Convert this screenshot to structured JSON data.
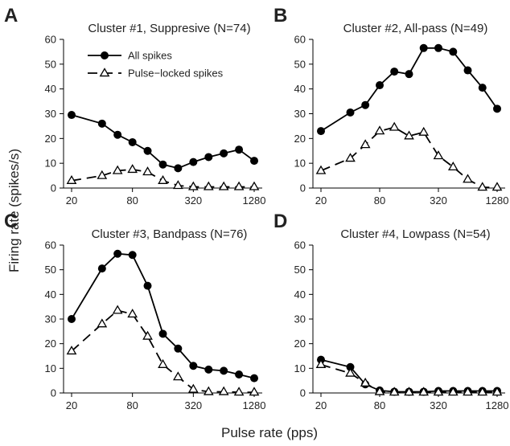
{
  "figure": {
    "xlabel": "Pulse rate (pps)",
    "ylabel": "Firing rate (spikes/s)"
  },
  "chart_data": [
    {
      "type": "line",
      "panel_label": "A",
      "title": "Cluster #1, Suppresive (N=74)",
      "xscale": "log2",
      "xlim": [
        20,
        1280
      ],
      "ylim": [
        0,
        60
      ],
      "xticks": [
        20,
        80,
        320,
        1280
      ],
      "xtick_labels": [
        "20",
        "80",
        "320",
        "1280"
      ],
      "yticks": [
        0,
        10,
        20,
        30,
        40,
        50,
        60
      ],
      "legend": "top-left",
      "x": [
        20,
        40,
        57,
        80,
        113,
        160,
        226,
        320,
        453,
        640,
        905,
        1280
      ],
      "series": [
        {
          "name": "All spikes",
          "marker": "circle",
          "line": "solid",
          "values": [
            29.5,
            26,
            21.5,
            18.5,
            15,
            9.5,
            8,
            10.5,
            12.5,
            14,
            15.5,
            11
          ]
        },
        {
          "name": "Pulse−locked spikes",
          "marker": "triangle",
          "line": "dashed",
          "values": [
            3,
            5,
            7,
            7.5,
            6.5,
            3,
            1,
            0.5,
            0.5,
            0.5,
            0.5,
            0.5
          ]
        }
      ]
    },
    {
      "type": "line",
      "panel_label": "B",
      "title": "Cluster #2, All-pass (N=49)",
      "xscale": "log2",
      "xlim": [
        20,
        1280
      ],
      "ylim": [
        0,
        60
      ],
      "xticks": [
        20,
        80,
        320,
        1280
      ],
      "xtick_labels": [
        "20",
        "80",
        "320",
        "1280"
      ],
      "yticks": [
        0,
        10,
        20,
        30,
        40,
        50,
        60
      ],
      "x": [
        20,
        40,
        57,
        80,
        113,
        160,
        226,
        320,
        453,
        640,
        905,
        1280
      ],
      "series": [
        {
          "marker": "circle",
          "line": "solid",
          "values": [
            23,
            30.5,
            33.5,
            41.5,
            47,
            46,
            56.5,
            56.5,
            55,
            47.5,
            40.5,
            32
          ]
        },
        {
          "marker": "triangle",
          "line": "dashed",
          "values": [
            7,
            12,
            17.5,
            23,
            24.5,
            21,
            22.5,
            13,
            8.5,
            3.5,
            0.3,
            0.3
          ]
        }
      ]
    },
    {
      "type": "line",
      "panel_label": "C",
      "title": "Cluster #3, Bandpass (N=76)",
      "xscale": "log2",
      "xlim": [
        20,
        1280
      ],
      "ylim": [
        0,
        60
      ],
      "xticks": [
        20,
        80,
        320,
        1280
      ],
      "xtick_labels": [
        "20",
        "80",
        "320",
        "1280"
      ],
      "yticks": [
        0,
        10,
        20,
        30,
        40,
        50,
        60
      ],
      "x": [
        20,
        40,
        57,
        80,
        113,
        160,
        226,
        320,
        453,
        640,
        905,
        1280
      ],
      "series": [
        {
          "marker": "circle",
          "line": "solid",
          "values": [
            30,
            50.5,
            56.5,
            56,
            43.5,
            24,
            18,
            11,
            9.5,
            9,
            7.5,
            6
          ]
        },
        {
          "marker": "triangle",
          "line": "dashed",
          "values": [
            17,
            28,
            33.5,
            32,
            23,
            11.5,
            6.5,
            1.5,
            0.5,
            0.5,
            0.3,
            0.3
          ]
        }
      ]
    },
    {
      "type": "line",
      "panel_label": "D",
      "title": "Cluster #4, Lowpass (N=54)",
      "xscale": "log2",
      "xlim": [
        20,
        1280
      ],
      "ylim": [
        0,
        60
      ],
      "xticks": [
        20,
        80,
        320,
        1280
      ],
      "xtick_labels": [
        "20",
        "80",
        "320",
        "1280"
      ],
      "yticks": [
        0,
        10,
        20,
        30,
        40,
        50,
        60
      ],
      "x": [
        20,
        40,
        57,
        80,
        113,
        160,
        226,
        320,
        453,
        640,
        905,
        1280
      ],
      "series": [
        {
          "marker": "circle",
          "line": "solid",
          "values": [
            13.5,
            10.5,
            3.5,
            1,
            0.5,
            0.5,
            0.5,
            0.8,
            0.8,
            0.8,
            0.8,
            0.8
          ]
        },
        {
          "marker": "triangle",
          "line": "dashed",
          "values": [
            11.5,
            8,
            4,
            0.5,
            0.3,
            0.3,
            0.3,
            0.3,
            0.3,
            0.3,
            0.3,
            0.3
          ]
        }
      ]
    }
  ]
}
